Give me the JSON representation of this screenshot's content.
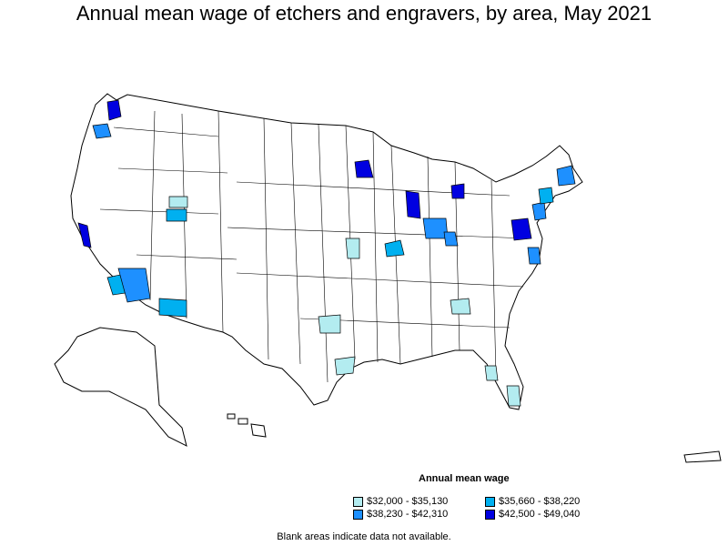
{
  "title": "Annual mean wage of etchers and engravers, by area, May 2021",
  "legend": {
    "title": "Annual mean wage",
    "items": [
      {
        "label": "$32,000 - $35,130",
        "color": "#b3ecf0"
      },
      {
        "label": "$35,660 - $38,220",
        "color": "#00b0f0"
      },
      {
        "label": "$38,230 - $42,310",
        "color": "#1e90ff"
      },
      {
        "label": "$42,500 - $49,040",
        "color": "#0000e0"
      }
    ]
  },
  "footnote": "Blank areas indicate data not available.",
  "colors": {
    "outline": "#000000",
    "background": "#ffffff"
  }
}
